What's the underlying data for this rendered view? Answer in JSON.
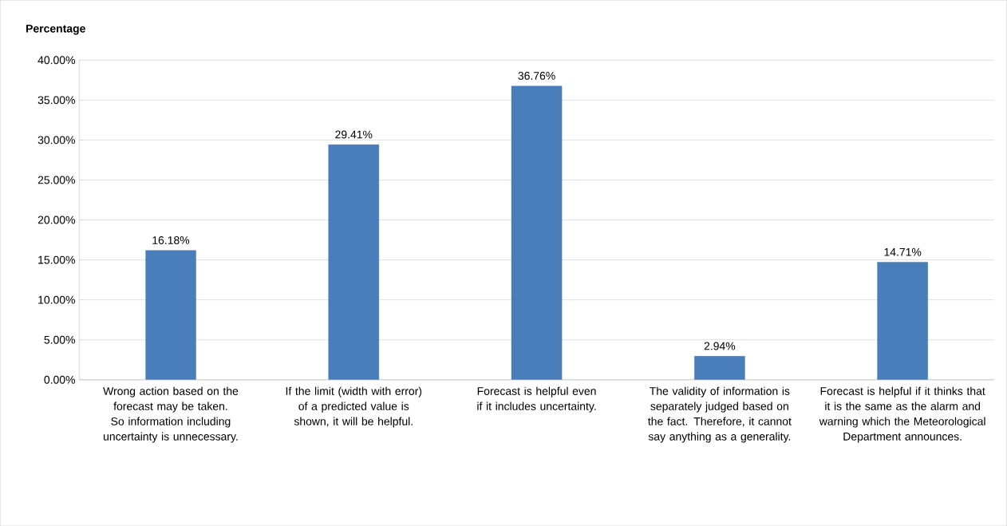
{
  "chart_data": {
    "type": "bar",
    "ylabel": "Percentage",
    "categories": [
      "Wrong action based on the forecast may be taken. So information including uncertainty is unnecessary.",
      "If the limit (width with error) of a predicted value is shown, it will be helpful.",
      "Forecast is helpful even if it includes uncertainty.",
      "The validity of information is separately judged based on the fact. Therefore, it cannot say anything as a generality.",
      "Forecast is helpful if it thinks that it is the same as the alarm and warning which the Meteorological Department announces."
    ],
    "values": [
      16.18,
      29.41,
      36.76,
      2.94,
      14.71
    ],
    "value_labels": [
      "16.18%",
      "29.41%",
      "36.76%",
      "2.94%",
      "14.71%"
    ],
    "color": "#4a7ebb",
    "ylim": [
      0,
      40
    ],
    "yticks": [
      {
        "value": 0,
        "label": "0.00%"
      },
      {
        "value": 5,
        "label": "5.00%"
      },
      {
        "value": 10,
        "label": "10.00%"
      },
      {
        "value": 15,
        "label": "15.00%"
      },
      {
        "value": 20,
        "label": "20.00%"
      },
      {
        "value": 25,
        "label": "25.00%"
      },
      {
        "value": 30,
        "label": "30.00%"
      },
      {
        "value": 35,
        "label": "35.00%"
      },
      {
        "value": 40,
        "label": "40.00%"
      }
    ],
    "grid": "y"
  }
}
